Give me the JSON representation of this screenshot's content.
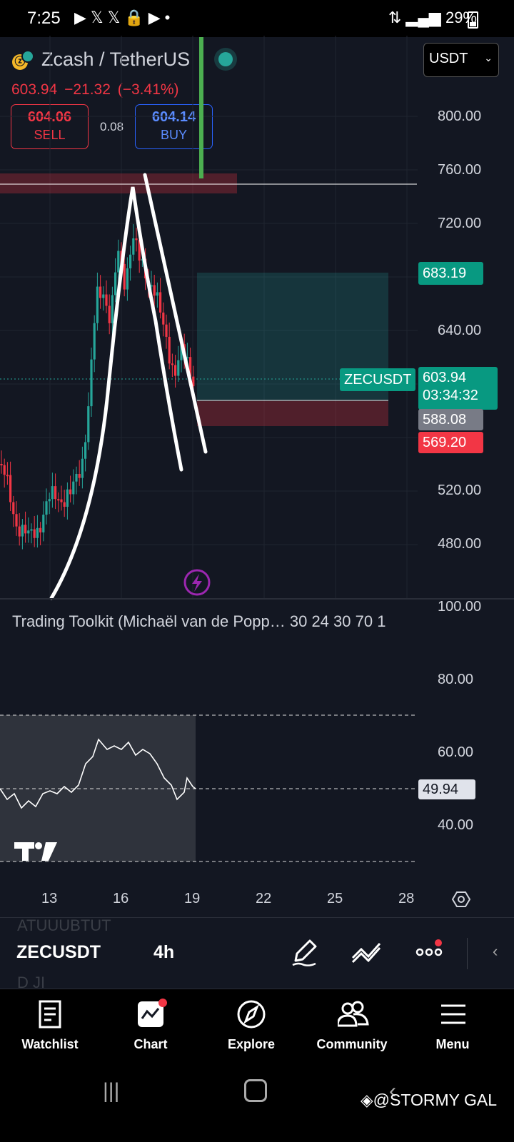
{
  "status_bar": {
    "time": "7:25",
    "left_icons": [
      "play-icon",
      "x-icon",
      "x-icon",
      "lock-icon",
      "play-icon",
      "dot-icon"
    ],
    "battery": "29%"
  },
  "header": {
    "symbol_title": "Zcash / TetherUS",
    "last_price": "603.94",
    "change": "−21.32",
    "change_pct": "(−3.41%)",
    "sell": {
      "price": "604.06",
      "label": "SELL"
    },
    "buy": {
      "price": "604.14",
      "label": "BUY"
    },
    "spread": "0.08",
    "currency": "USDT"
  },
  "price_axis": {
    "labels": [
      "800.00",
      "760.00",
      "720.00",
      "640.00",
      "520.00",
      "480.00"
    ],
    "tags": {
      "target": "683.19",
      "symbol": "ZECUSDT",
      "current_price": "603.94",
      "countdown": "03:34:32",
      "entry": "588.08",
      "stop": "569.20"
    }
  },
  "indicator": {
    "name": "Trading Toolkit (Michaël van de Popp… 30 24 30 70 1",
    "axis_labels": [
      "100.00",
      "80.00",
      "60.00",
      "40.00"
    ],
    "value": "49.94"
  },
  "time_axis": {
    "labels": [
      "13",
      "16",
      "19",
      "22",
      "25",
      "28"
    ]
  },
  "chart_data": {
    "type": "candlestick",
    "symbol": "ZECUSDT",
    "interval": "4h",
    "x_ticks": [
      "13",
      "16",
      "19",
      "22",
      "25",
      "28"
    ],
    "y_range": [
      440,
      840
    ],
    "last_price": 603.94,
    "position_tool": {
      "target": 683.19,
      "entry": 588.08,
      "stop": 569.2
    },
    "resistance_zone": [
      745,
      752
    ],
    "indicator_range": [
      30,
      100
    ],
    "indicator_levels": [
      70,
      50,
      30
    ],
    "indicator_last": 49.94,
    "colors": {
      "up": "#26a69a",
      "down": "#f23645",
      "background": "#131722"
    }
  },
  "toolbar": {
    "symbol": "ZECUSDT",
    "interval": "4h",
    "ghost_top": "ATUUUBTUT",
    "ghost_bottom": "D JI"
  },
  "nav": {
    "items": [
      {
        "label": "Watchlist",
        "icon": "watchlist-icon"
      },
      {
        "label": "Chart",
        "icon": "chart-icon"
      },
      {
        "label": "Explore",
        "icon": "compass-icon"
      },
      {
        "label": "Community",
        "icon": "community-icon"
      },
      {
        "label": "Menu",
        "icon": "menu-icon"
      }
    ]
  },
  "watermark": "@STORMY GAL"
}
